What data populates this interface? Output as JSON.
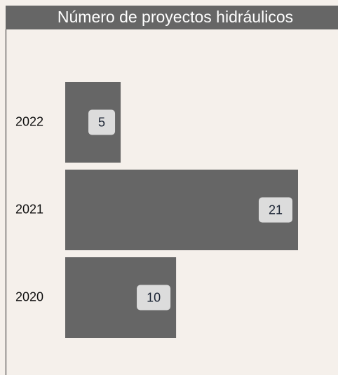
{
  "chart_data": {
    "type": "bar",
    "orientation": "horizontal",
    "title": "Número de proyectos hidráulicos",
    "categories": [
      "2022",
      "2021",
      "2020"
    ],
    "values": [
      5,
      21,
      10
    ],
    "color": "#666666"
  }
}
